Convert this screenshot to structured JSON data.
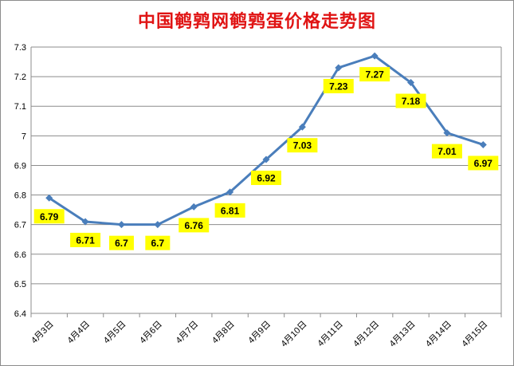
{
  "chart_data": {
    "type": "line",
    "title": "中国鹌鹑网鹌鹑蛋价格走势图",
    "xlabel": "",
    "ylabel": "",
    "categories": [
      "4月3日",
      "4月4日",
      "4月5日",
      "4月6日",
      "4月7日",
      "4月8日",
      "4月9日",
      "4月10日",
      "4月11日",
      "4月12日",
      "4月13日",
      "4月14日",
      "4月15日"
    ],
    "series": [
      {
        "values": [
          6.79,
          6.71,
          6.7,
          6.7,
          6.76,
          6.81,
          6.92,
          7.03,
          7.23,
          7.27,
          7.18,
          7.01,
          6.97
        ]
      }
    ],
    "data_labels": [
      "6.79",
      "6.71",
      "6.7",
      "6.7",
      "6.76",
      "6.81",
      "6.92",
      "7.03",
      "7.23",
      "7.27",
      "7.18",
      "7.01",
      "6.97"
    ],
    "yticks": [
      "6.4",
      "6.5",
      "6.6",
      "6.7",
      "6.8",
      "6.9",
      "7",
      "7.1",
      "7.2",
      "7.3"
    ],
    "ylim": [
      6.4,
      7.3
    ],
    "grid": true,
    "legend": "none",
    "colors": {
      "line": "#4a7ebb",
      "marker": "#4a7ebb",
      "label_bg": "#ffff00",
      "title": "#e01414",
      "grid": "#8c8c8c"
    }
  }
}
